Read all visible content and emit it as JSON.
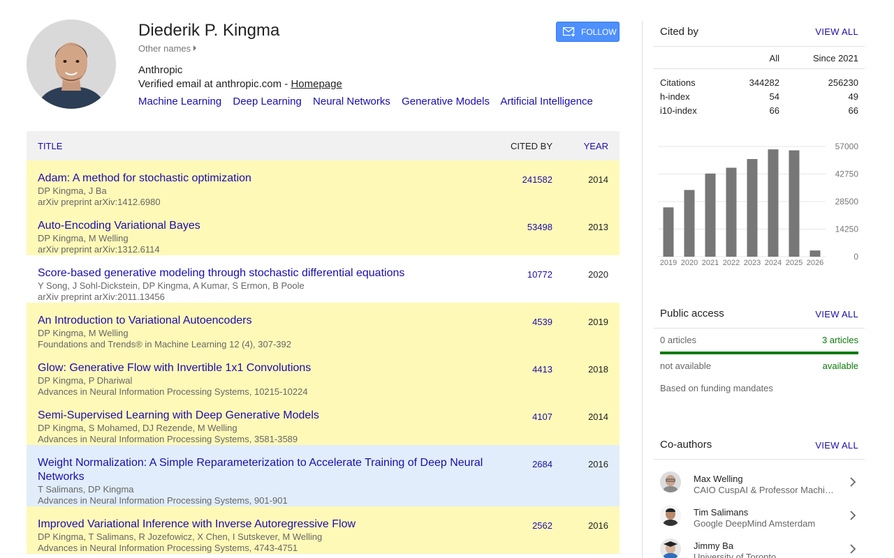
{
  "profile": {
    "name": "Diederik P. Kingma",
    "other_names": "Other names",
    "affiliation": "Anthropic",
    "email_text": "Verified email at anthropic.com - ",
    "homepage_label": "Homepage",
    "interests": [
      "Machine Learning",
      "Deep Learning",
      "Neural Networks",
      "Generative Models",
      "Artificial Intelligence"
    ],
    "follow_label": "FOLLOW"
  },
  "table": {
    "headers": {
      "title": "TITLE",
      "cited_by": "CITED BY",
      "year": "YEAR"
    },
    "articles": [
      {
        "title": "Adam: A method for stochastic optimization",
        "authors": "DP Kingma, J Ba",
        "venue": "arXiv preprint arXiv:1412.6980",
        "cited_by": "241582",
        "year": "2014",
        "highlight": "yellow"
      },
      {
        "title": "Auto-Encoding Variational Bayes",
        "authors": "DP Kingma, M Welling",
        "venue": "arXiv preprint arXiv:1312.6114",
        "cited_by": "53498",
        "year": "2013",
        "highlight": "yellow"
      },
      {
        "title": "Score-based generative modeling through stochastic differential equations",
        "authors": "Y Song, J Sohl-Dickstein, DP Kingma, A Kumar, S Ermon, B Poole",
        "venue": "arXiv preprint arXiv:2011.13456",
        "cited_by": "10772",
        "year": "2020",
        "highlight": "none"
      },
      {
        "title": "An Introduction to Variational Autoencoders",
        "authors": "DP Kingma, M Welling",
        "venue": "Foundations and Trends® in Machine Learning 12 (4), 307-392",
        "cited_by": "4539",
        "year": "2019",
        "highlight": "yellow"
      },
      {
        "title": "Glow: Generative Flow with Invertible 1x1 Convolutions",
        "authors": "DP Kingma, P Dhariwal",
        "venue": "Advances in Neural Information Processing Systems, 10215-10224",
        "cited_by": "4413",
        "year": "2018",
        "highlight": "yellow"
      },
      {
        "title": "Semi-Supervised Learning with Deep Generative Models",
        "authors": "DP Kingma, S Mohamed, DJ Rezende, M Welling",
        "venue": "Advances in Neural Information Processing Systems, 3581-3589",
        "cited_by": "4107",
        "year": "2014",
        "highlight": "yellow"
      },
      {
        "title": "Weight Normalization: A Simple Reparameterization to Accelerate Training of Deep Neural Networks",
        "authors": "T Salimans, DP Kingma",
        "venue": "Advances in Neural Information Processing Systems, 901-901",
        "cited_by": "2684",
        "year": "2016",
        "highlight": "blue"
      },
      {
        "title": "Improved Variational Inference with Inverse Autoregressive Flow",
        "authors": "DP Kingma, T Salimans, R Jozefowicz, X Chen, I Sutskever, M Welling",
        "venue": "Advances in Neural Information Processing Systems, 4743-4751",
        "cited_by": "2562",
        "year": "2016",
        "highlight": "yellow"
      }
    ]
  },
  "cited_by": {
    "title": "Cited by",
    "view_all": "VIEW ALL",
    "col_all": "All",
    "col_since": "Since 2021",
    "metrics": [
      {
        "label": "Citations",
        "all": "344282",
        "since": "256230"
      },
      {
        "label": "h-index",
        "all": "54",
        "since": "49"
      },
      {
        "label": "i10-index",
        "all": "66",
        "since": "66"
      }
    ]
  },
  "chart_data": {
    "type": "bar",
    "categories": [
      "2019",
      "2020",
      "2021",
      "2022",
      "2023",
      "2024",
      "2025",
      "2026"
    ],
    "values": [
      25500,
      34500,
      43000,
      46000,
      50500,
      55500,
      55000,
      3200
    ],
    "yticks": [
      "57000",
      "42750",
      "28500",
      "14250",
      "0"
    ],
    "ylim": [
      0,
      57000
    ],
    "bar_color": "#777777",
    "grid": true
  },
  "public_access": {
    "title": "Public access",
    "view_all": "VIEW ALL",
    "left_count": "0 articles",
    "right_count": "3 articles",
    "left_label": "not available",
    "right_label": "available",
    "note": "Based on funding mandates",
    "available_fraction": 1.0
  },
  "coauthors": {
    "title": "Co-authors",
    "view_all": "VIEW ALL",
    "items": [
      {
        "name": "Max Welling",
        "affiliation": "CAIO CuspAI & Professor Machi…"
      },
      {
        "name": "Tim Salimans",
        "affiliation": "Google DeepMind Amsterdam"
      },
      {
        "name": "Jimmy Ba",
        "affiliation": "University of Toronto"
      }
    ]
  },
  "colors": {
    "link": "#1a0dab",
    "highlight_yellow": "#fff9b8",
    "highlight_blue": "#e1edfa",
    "follow_button": "#4d90fe",
    "available_green": "#0a7b0a"
  }
}
